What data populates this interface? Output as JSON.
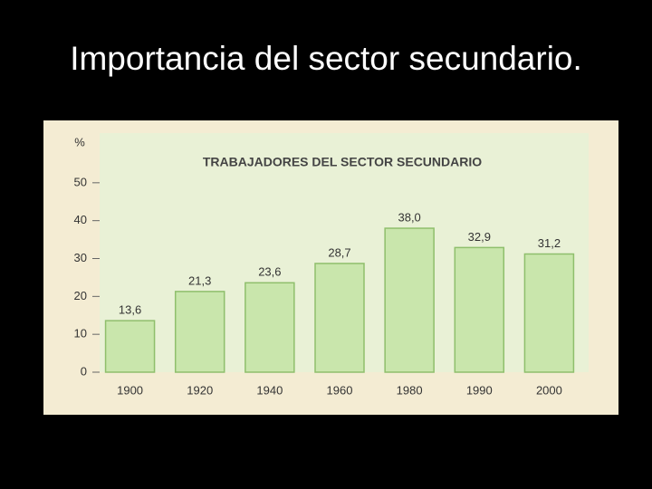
{
  "title": "Importancia del sector secundario.",
  "chart_data": {
    "type": "bar",
    "title": "TRABAJADORES DEL SECTOR SECUNDARIO",
    "y_label": "%",
    "categories": [
      "1900",
      "1920",
      "1940",
      "1960",
      "1980",
      "1990",
      "2000"
    ],
    "values": [
      13.6,
      21.3,
      23.6,
      28.7,
      38.0,
      32.9,
      31.2
    ],
    "value_labels": [
      "13,6",
      "21,3",
      "23,6",
      "28,7",
      "38,0",
      "32,9",
      "31,2"
    ],
    "color": "#c9e6ac",
    "ylim": [
      0,
      60
    ],
    "yticks": [
      0,
      10,
      20,
      30,
      40,
      50
    ],
    "grid": false
  }
}
